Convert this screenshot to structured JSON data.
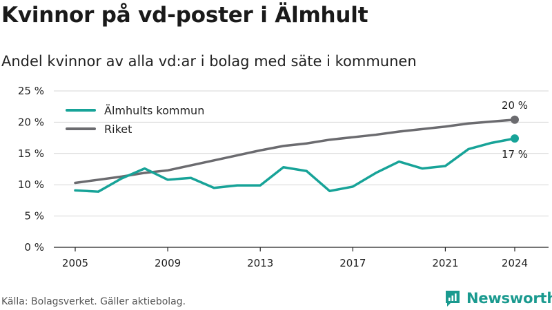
{
  "title": "Kvinnor på vd-poster i Älmhult",
  "subtitle": "Andel kvinnor av alla vd:ar i bolag med säte i kommunen",
  "source": "Källa: Bolagsverket. Gäller aktiebolag.",
  "brand": "Newsworthy",
  "colors": {
    "almhult": "#17a398",
    "riket": "#6b6b6f",
    "grid": "#d6d6d6",
    "brand": "#1a9a8f"
  },
  "chart_data": {
    "type": "line",
    "title": "Kvinnor på vd-poster i Älmhult",
    "subtitle": "Andel kvinnor av alla vd:ar i bolag med säte i kommunen",
    "xlabel": "",
    "ylabel": "",
    "x": [
      2005,
      2006,
      2007,
      2008,
      2009,
      2010,
      2011,
      2012,
      2013,
      2014,
      2015,
      2016,
      2017,
      2018,
      2019,
      2020,
      2021,
      2022,
      2023,
      2024
    ],
    "xticks": [
      2005,
      2009,
      2013,
      2017,
      2021,
      2024
    ],
    "xtick_labels": [
      "2005",
      "2009",
      "2013",
      "2017",
      "2021",
      "2024"
    ],
    "ylim": [
      0,
      25
    ],
    "yticks": [
      0,
      5,
      10,
      15,
      20,
      25
    ],
    "ytick_labels": [
      "0 %",
      "5 %",
      "10 %",
      "15 %",
      "20 %",
      "25 %"
    ],
    "grid": true,
    "legend_position": "top-left",
    "series": [
      {
        "name": "Älmhults kommun",
        "values": [
          9.1,
          8.9,
          11.0,
          12.6,
          10.8,
          11.1,
          9.5,
          9.9,
          9.9,
          12.8,
          12.2,
          9.0,
          9.7,
          11.9,
          13.7,
          12.6,
          13.0,
          15.7,
          16.7,
          17.4
        ],
        "end_label": "17 %"
      },
      {
        "name": "Riket",
        "values": [
          10.3,
          10.8,
          11.3,
          11.9,
          12.3,
          13.1,
          13.9,
          14.7,
          15.5,
          16.2,
          16.6,
          17.2,
          17.6,
          18.0,
          18.5,
          18.9,
          19.3,
          19.8,
          20.1,
          20.4
        ],
        "end_label": "20 %"
      }
    ]
  }
}
